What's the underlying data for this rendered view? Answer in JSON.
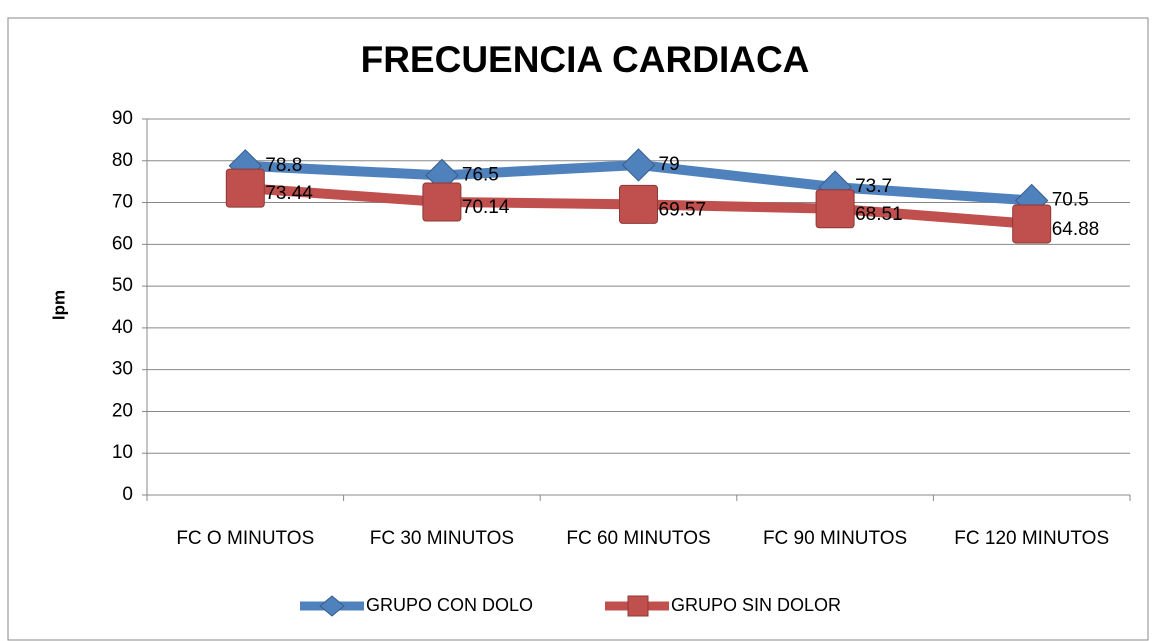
{
  "chart_data": {
    "type": "line",
    "title": "FRECUENCIA CARDIACA",
    "y_label": "lpm",
    "categories": [
      "FC O MINUTOS",
      "FC 30 MINUTOS",
      "FC 60 MINUTOS",
      "FC 90 MINUTOS",
      "FC 120 MINUTOS"
    ],
    "series": [
      {
        "name": "GRUPO CON DOLO",
        "color": "#4f81bd",
        "marker": "diamond",
        "values": [
          78.8,
          76.5,
          79,
          73.7,
          70.5
        ]
      },
      {
        "name": "GRUPO SIN DOLOR",
        "color": "#c0504d",
        "marker": "square",
        "values": [
          73.44,
          70.14,
          69.57,
          68.51,
          64.88
        ]
      }
    ],
    "ylim": [
      0,
      90
    ],
    "yticks": [
      0,
      10,
      20,
      30,
      40,
      50,
      60,
      70,
      80,
      90
    ],
    "grid": true,
    "legend": "bottom"
  }
}
